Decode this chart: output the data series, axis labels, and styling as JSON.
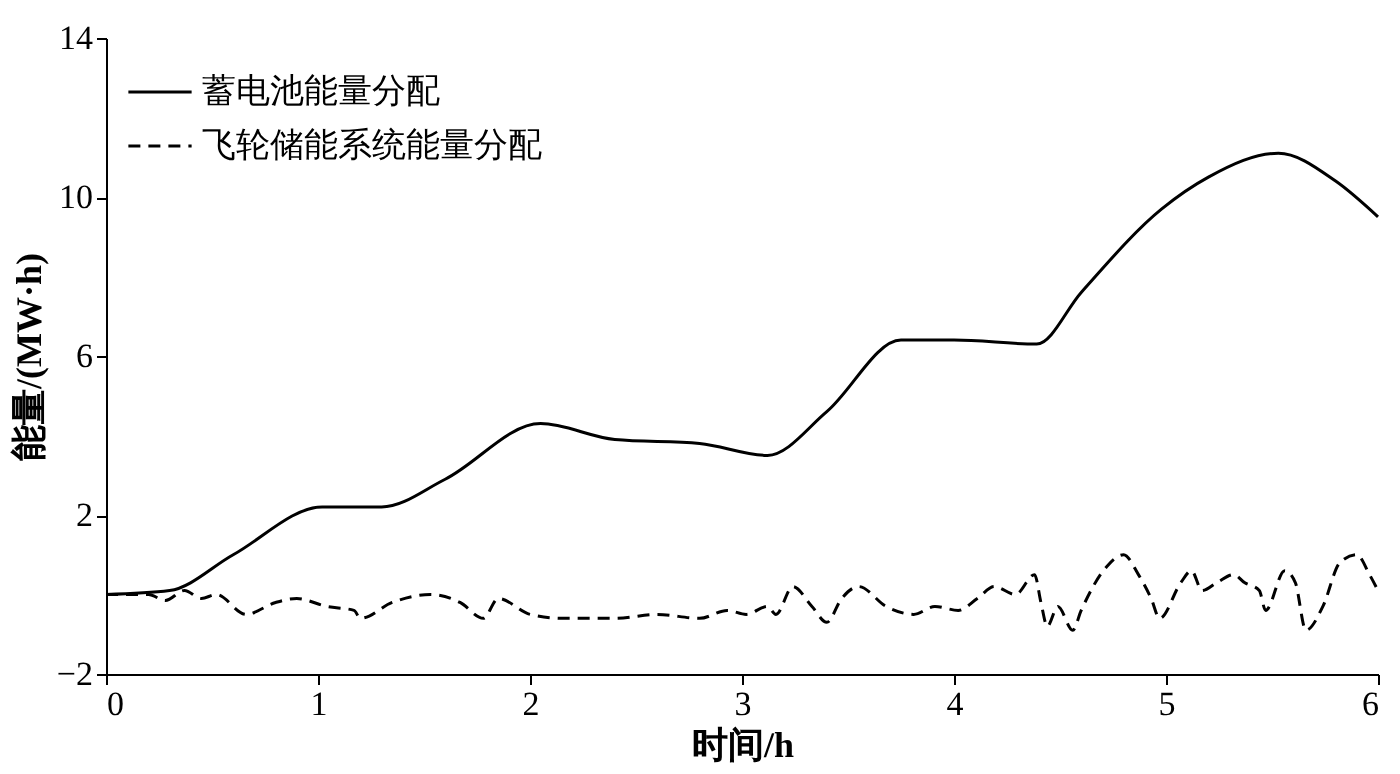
{
  "chart_data": {
    "type": "line",
    "xlabel": "时间/h",
    "ylabel": "能量/(MW·h)",
    "xlim": [
      0,
      6
    ],
    "xticks": [
      0,
      1,
      2,
      3,
      4,
      5,
      6
    ],
    "ylim": [
      -2,
      14
    ],
    "yticks": [
      -2,
      2,
      6,
      10,
      14
    ],
    "grid": false,
    "legend": "top left",
    "marker": "none",
    "series": [
      {
        "name": "蓄电池能量分配",
        "color": "#000000",
        "line_style": "solid",
        "x": [
          0,
          0.3,
          0.6,
          1.02,
          1.3,
          1.6,
          2.05,
          2.4,
          2.8,
          3.12,
          3.4,
          3.75,
          4.0,
          4.39,
          4.6,
          4.98,
          5.2,
          5.53,
          5.8,
          6.0
        ],
        "values": [
          0,
          0.1,
          1.0,
          2.2,
          2.2,
          2.9,
          4.3,
          3.9,
          3.8,
          3.5,
          4.6,
          6.4,
          6.4,
          6.3,
          7.6,
          9.7,
          10.5,
          11.1,
          10.4,
          9.5
        ]
      },
      {
        "name": "飞轮储能系统能量分配",
        "color": "#000000",
        "line_style": "dashed",
        "x": [
          0,
          0.2,
          0.28,
          0.37,
          0.45,
          0.52,
          0.66,
          0.8,
          0.9,
          1.04,
          1.17,
          1.2,
          1.35,
          1.53,
          1.67,
          1.78,
          1.85,
          2.0,
          2.15,
          2.4,
          2.6,
          2.8,
          2.93,
          3.02,
          3.12,
          3.16,
          3.24,
          3.33,
          3.4,
          3.47,
          3.55,
          3.68,
          3.81,
          3.91,
          4.02,
          4.11,
          4.19,
          4.29,
          4.38,
          4.41,
          4.44,
          4.49,
          4.56,
          4.6,
          4.72,
          4.8,
          4.87,
          4.93,
          4.97,
          5.07,
          5.12,
          5.17,
          5.24,
          5.32,
          5.37,
          5.44,
          5.47,
          5.56,
          5.61,
          5.66,
          5.74,
          5.82,
          5.9,
          5.96,
          6.0
        ],
        "values": [
          0,
          0,
          -0.15,
          0.1,
          -0.1,
          0.0,
          -0.5,
          -0.2,
          -0.1,
          -0.3,
          -0.4,
          -0.6,
          -0.2,
          0.0,
          -0.2,
          -0.6,
          -0.1,
          -0.5,
          -0.6,
          -0.6,
          -0.5,
          -0.6,
          -0.4,
          -0.5,
          -0.3,
          -0.5,
          0.2,
          -0.3,
          -0.7,
          -0.1,
          0.2,
          -0.3,
          -0.5,
          -0.3,
          -0.4,
          -0.1,
          0.2,
          0.0,
          0.5,
          -0.2,
          -0.8,
          -0.3,
          -0.9,
          -0.4,
          0.7,
          1.0,
          0.5,
          -0.1,
          -0.6,
          0.3,
          0.6,
          0.1,
          0.3,
          0.5,
          0.3,
          0.1,
          -0.4,
          0.6,
          0.3,
          -0.9,
          -0.3,
          0.8,
          1.0,
          0.5,
          0.1
        ]
      }
    ]
  }
}
